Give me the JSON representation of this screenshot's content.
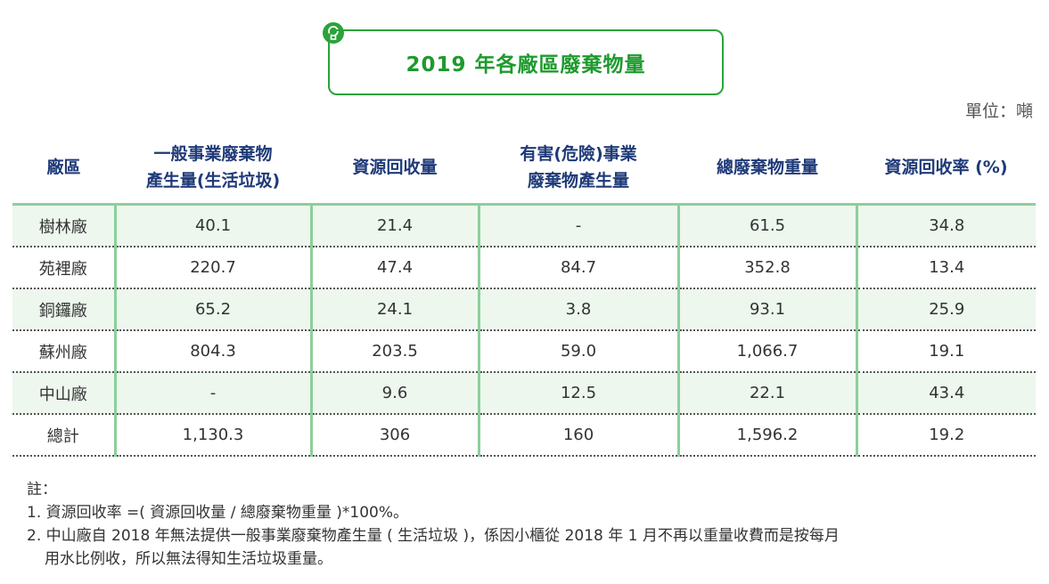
{
  "title": "2019 年各廠區廢棄物量",
  "unit": "單位：噸",
  "icon": "lightbulb-icon",
  "accent_color": "#2aa33a",
  "header": {
    "col0": "廠區",
    "col1_line1": "一般事業廢棄物",
    "col1_line2": "產生量(生活垃圾)",
    "col2": "資源回收量",
    "col3_line1": "有害(危險)事業",
    "col3_line2": "廢棄物產生量",
    "col4": "總廢棄物重量",
    "col5": "資源回收率 (%)"
  },
  "rows": [
    {
      "name": "樹林廠",
      "general": "40.1",
      "recycle": "21.4",
      "hazard": "-",
      "total": "61.5",
      "rate": "34.8"
    },
    {
      "name": "苑裡廠",
      "general": "220.7",
      "recycle": "47.4",
      "hazard": "84.7",
      "total": "352.8",
      "rate": "13.4"
    },
    {
      "name": "銅鑼廠",
      "general": "65.2",
      "recycle": "24.1",
      "hazard": "3.8",
      "total": "93.1",
      "rate": "25.9"
    },
    {
      "name": "蘇州廠",
      "general": "804.3",
      "recycle": "203.5",
      "hazard": "59.0",
      "total": "1,066.7",
      "rate": "19.1"
    },
    {
      "name": "中山廠",
      "general": "-",
      "recycle": "9.6",
      "hazard": "12.5",
      "total": "22.1",
      "rate": "43.4"
    },
    {
      "name": "總計",
      "general": "1,130.3",
      "recycle": "306",
      "hazard": "160",
      "total": "1,596.2",
      "rate": "19.2"
    }
  ],
  "notes": {
    "heading": "註：",
    "note1": "1. 資源回收率 =( 資源回收量 / 總廢棄物重量 )*100%。",
    "note2_line1": "2. 中山廠自 2018 年無法提供一般事業廢棄物產生量 ( 生活垃圾 )，係因小櫃從 2018 年 1 月不再以重量收費而是按每月",
    "note2_line2": "用水比例收，所以無法得知生活垃圾重量。"
  }
}
